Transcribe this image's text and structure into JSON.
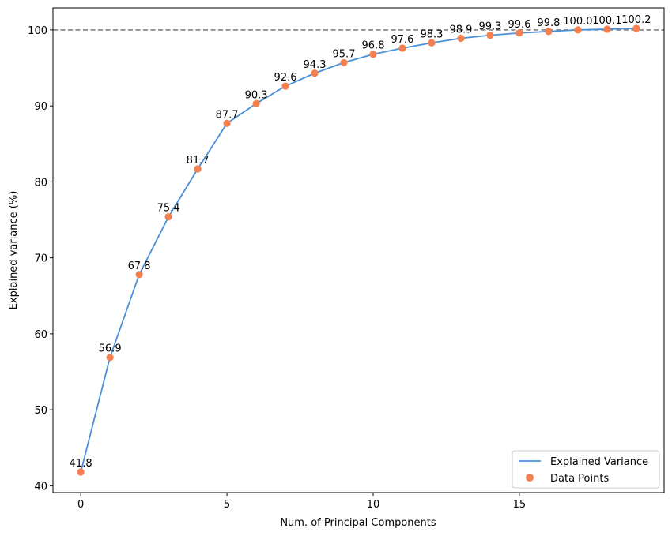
{
  "chart_data": {
    "type": "line",
    "title": "",
    "xlabel": "Num. of Principal Components",
    "ylabel": "Explained variance (%)",
    "x": [
      0,
      1,
      2,
      3,
      4,
      5,
      6,
      7,
      8,
      9,
      10,
      11,
      12,
      13,
      14,
      15,
      16,
      17,
      18,
      19
    ],
    "series": [
      {
        "name": "Explained Variance",
        "kind": "line",
        "color": "#4a90d9",
        "values": [
          41.8,
          56.9,
          67.8,
          75.4,
          81.7,
          87.7,
          90.3,
          92.6,
          94.3,
          95.7,
          96.8,
          97.6,
          98.3,
          98.9,
          99.3,
          99.6,
          99.8,
          100.0,
          100.1,
          100.2
        ]
      },
      {
        "name": "Data Points",
        "kind": "scatter",
        "color": "#f47f4f",
        "values": [
          41.8,
          56.9,
          67.8,
          75.4,
          81.7,
          87.7,
          90.3,
          92.6,
          94.3,
          95.7,
          96.8,
          97.6,
          98.3,
          98.9,
          99.3,
          99.6,
          99.8,
          100.0,
          100.1,
          100.2
        ]
      }
    ],
    "data_labels": [
      "41.8",
      "56.9",
      "67.8",
      "75.4",
      "81.7",
      "87.7",
      "90.3",
      "92.6",
      "94.3",
      "95.7",
      "96.8",
      "97.6",
      "98.3",
      "98.9",
      "99.3",
      "99.6",
      "99.8",
      "100.0",
      "100.1",
      "100.2"
    ],
    "reference_line": {
      "y": 100,
      "style": "dashed",
      "color": "#808080"
    },
    "xlim": [
      -0.95,
      19.95
    ],
    "ylim": [
      39.1,
      102.9
    ],
    "xticks": [
      0,
      5,
      10,
      15
    ],
    "xtick_labels": [
      "0",
      "5",
      "10",
      "15"
    ],
    "yticks": [
      40,
      50,
      60,
      70,
      80,
      90,
      100
    ],
    "ytick_labels": [
      "40",
      "50",
      "60",
      "70",
      "80",
      "90",
      "100"
    ],
    "grid": false,
    "legend_position": "bottom-right"
  }
}
